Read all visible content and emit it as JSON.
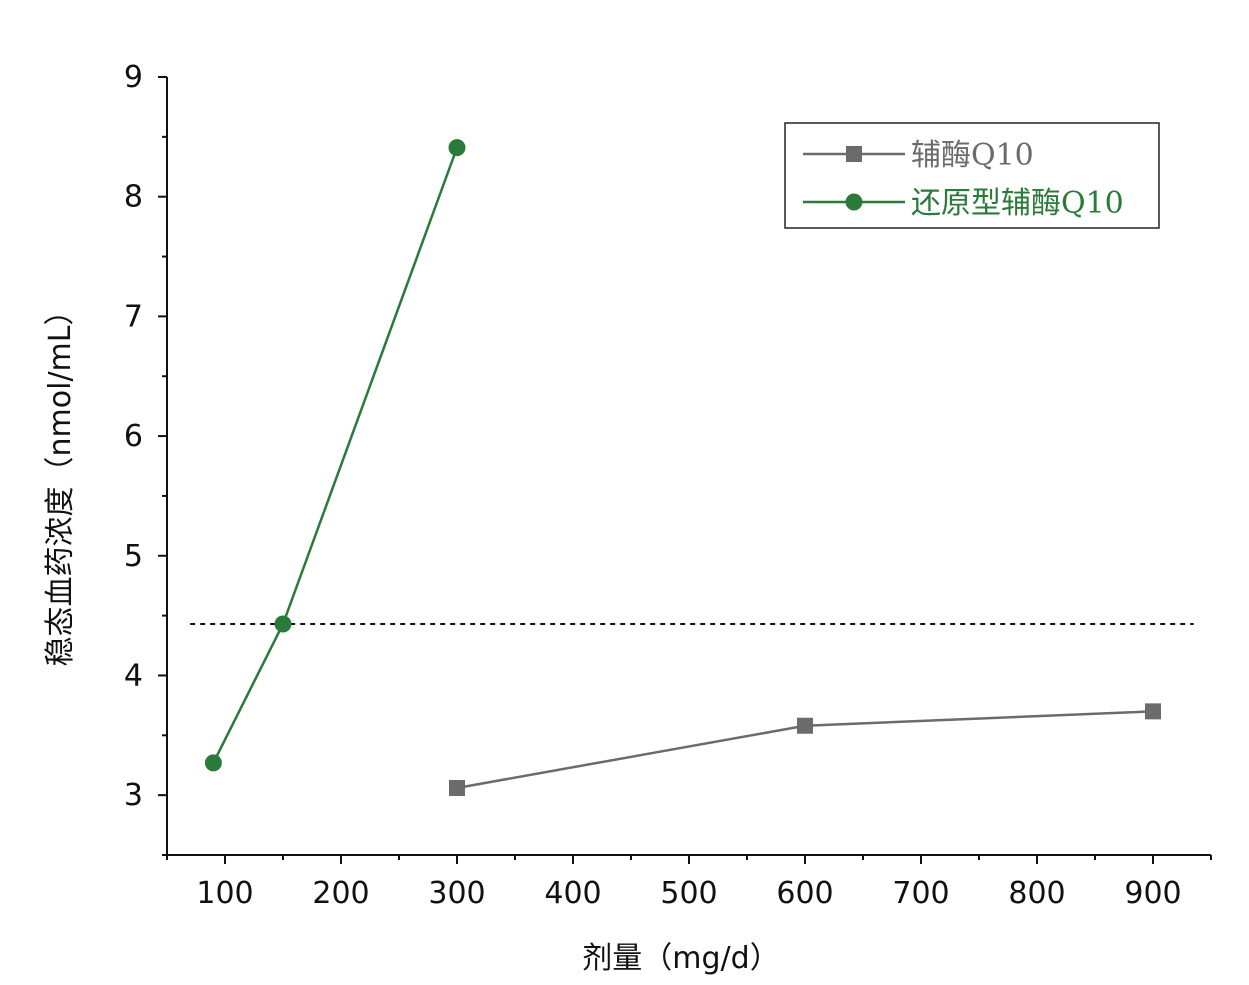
{
  "chart_data": {
    "type": "line",
    "xlabel": "剂量（mg/d）",
    "ylabel": "稳态血药浓度（nmol/mL）",
    "xlim": [
      50,
      950
    ],
    "ylim": [
      2.5,
      9
    ],
    "x_ticks": [
      "100",
      "200",
      "300",
      "400",
      "500",
      "600",
      "700",
      "800",
      "900"
    ],
    "y_ticks": [
      "3",
      "4",
      "5",
      "6",
      "7",
      "8",
      "9"
    ],
    "grid": false,
    "legend_position": "top-right",
    "reference_line": {
      "y": 4.43,
      "style": "dotted"
    },
    "series": [
      {
        "name": "辅酶Q10",
        "color": "#6b6b6b",
        "marker": "square",
        "x": [
          300,
          600,
          900
        ],
        "y": [
          3.06,
          3.58,
          3.7
        ]
      },
      {
        "name": "还原型辅酶Q10",
        "color": "#2a7a3a",
        "marker": "circle",
        "x": [
          90,
          150,
          300
        ],
        "y": [
          3.27,
          4.43,
          8.41
        ]
      }
    ]
  }
}
